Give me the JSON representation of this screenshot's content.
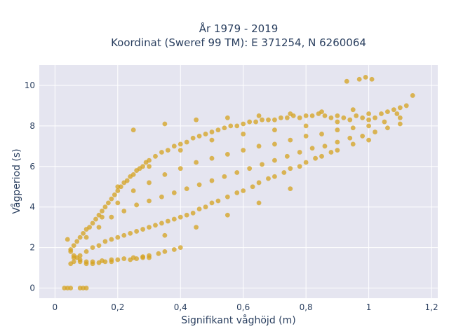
{
  "chart_data": {
    "type": "scatter",
    "title_line1": "År 1979 - 2019",
    "title_line2": "Koordinat (Sweref 99 TM): E 371254, N 6260064",
    "xlabel": "Signifikant våghöjd (m)",
    "ylabel": "Vågperiod (s)",
    "xlim": [
      -0.05,
      1.22
    ],
    "ylim": [
      -0.5,
      11.0
    ],
    "xticks": [
      0,
      0.2,
      0.4,
      0.6,
      0.8,
      1.0,
      1.2
    ],
    "xtick_labels": [
      "0",
      "0,2",
      "0,4",
      "0,6",
      "0,8",
      "1",
      "1,2"
    ],
    "yticks": [
      0,
      2,
      4,
      6,
      8,
      10
    ],
    "ytick_labels": [
      "0",
      "2",
      "4",
      "6",
      "8",
      "10"
    ],
    "grid": true,
    "marker_color": "#d4a21f",
    "plot_bg": "#e5e5f0",
    "series": [
      {
        "x": [
          0.03,
          0.04,
          0.05,
          0.08,
          0.09,
          0.1,
          0.05,
          0.06,
          0.08,
          0.1,
          0.12,
          0.15,
          0.18,
          0.2,
          0.22,
          0.25,
          0.28,
          0.3,
          0.33,
          0.35,
          0.38,
          0.4,
          0.05,
          0.06,
          0.07,
          0.08,
          0.09,
          0.1,
          0.11,
          0.12,
          0.13,
          0.14,
          0.15,
          0.16,
          0.17,
          0.18,
          0.19,
          0.2,
          0.21,
          0.22,
          0.23,
          0.24,
          0.25,
          0.26,
          0.27,
          0.28,
          0.29,
          0.3,
          0.32,
          0.34,
          0.36,
          0.38,
          0.4,
          0.42,
          0.44,
          0.46,
          0.48,
          0.5,
          0.52,
          0.54,
          0.56,
          0.58,
          0.6,
          0.62,
          0.64,
          0.66,
          0.68,
          0.7,
          0.72,
          0.74,
          0.76,
          0.78,
          0.8,
          0.82,
          0.84,
          0.86,
          0.88,
          0.9,
          0.92,
          0.94,
          0.96,
          0.98,
          1.0,
          1.02,
          1.04,
          1.06,
          1.08,
          1.1,
          1.12,
          0.06,
          0.08,
          0.1,
          0.12,
          0.14,
          0.16,
          0.18,
          0.2,
          0.22,
          0.24,
          0.26,
          0.28,
          0.3,
          0.32,
          0.34,
          0.36,
          0.38,
          0.4,
          0.42,
          0.44,
          0.46,
          0.48,
          0.5,
          0.52,
          0.55,
          0.58,
          0.6,
          0.63,
          0.65,
          0.68,
          0.7,
          0.73,
          0.75,
          0.78,
          0.8,
          0.83,
          0.85,
          0.88,
          0.9,
          0.95,
          1.0,
          0.1,
          0.14,
          0.18,
          0.22,
          0.26,
          0.3,
          0.34,
          0.38,
          0.42,
          0.46,
          0.5,
          0.54,
          0.58,
          0.62,
          0.66,
          0.7,
          0.74,
          0.78,
          0.82,
          0.86,
          0.9,
          0.94,
          0.98,
          1.02,
          1.06,
          1.1,
          0.15,
          0.2,
          0.25,
          0.3,
          0.35,
          0.4,
          0.45,
          0.5,
          0.55,
          0.6,
          0.65,
          0.7,
          0.75,
          0.8,
          0.85,
          0.9,
          0.95,
          1.0,
          1.05,
          1.1,
          0.2,
          0.3,
          0.4,
          0.5,
          0.6,
          0.7,
          0.8,
          0.9,
          1.0,
          1.09,
          0.97,
          0.99,
          1.01,
          0.93,
          1.14,
          0.25,
          0.35,
          0.45,
          0.55,
          0.65,
          0.75,
          0.85,
          0.95,
          0.1,
          0.12,
          0.14,
          0.16,
          0.18,
          0.08,
          0.07,
          0.06,
          0.05,
          0.04,
          0.3,
          0.28,
          0.26,
          0.24,
          0.35,
          0.45,
          0.55,
          0.65,
          0.75
        ],
        "y": [
          0.0,
          0.0,
          0.0,
          0.0,
          0.0,
          0.0,
          1.2,
          1.3,
          1.3,
          1.3,
          1.3,
          1.35,
          1.4,
          1.4,
          1.45,
          1.5,
          1.55,
          1.6,
          1.7,
          1.8,
          1.9,
          2.0,
          1.8,
          2.1,
          2.3,
          2.5,
          2.7,
          2.9,
          3.0,
          3.2,
          3.4,
          3.6,
          3.8,
          4.0,
          4.2,
          4.4,
          4.6,
          4.8,
          5.0,
          5.2,
          5.3,
          5.5,
          5.6,
          5.8,
          5.9,
          6.0,
          6.2,
          6.3,
          6.5,
          6.7,
          6.8,
          7.0,
          7.1,
          7.2,
          7.4,
          7.5,
          7.6,
          7.7,
          7.8,
          7.9,
          8.0,
          8.0,
          8.1,
          8.2,
          8.2,
          8.3,
          8.3,
          8.3,
          8.4,
          8.4,
          8.5,
          8.4,
          8.5,
          8.5,
          8.6,
          8.5,
          8.4,
          8.5,
          8.4,
          8.3,
          8.5,
          8.4,
          8.6,
          8.4,
          8.6,
          8.7,
          8.8,
          8.9,
          9.0,
          1.5,
          1.6,
          1.8,
          2.0,
          2.1,
          2.3,
          2.4,
          2.5,
          2.6,
          2.7,
          2.8,
          2.9,
          3.0,
          3.1,
          3.2,
          3.3,
          3.4,
          3.5,
          3.6,
          3.7,
          3.9,
          4.0,
          4.2,
          4.3,
          4.5,
          4.7,
          4.8,
          5.0,
          5.2,
          5.4,
          5.5,
          5.7,
          5.9,
          6.0,
          6.2,
          6.4,
          6.5,
          6.7,
          6.8,
          7.1,
          7.3,
          2.5,
          3.0,
          3.5,
          3.8,
          4.1,
          4.3,
          4.5,
          4.7,
          4.9,
          5.1,
          5.3,
          5.5,
          5.7,
          5.9,
          6.1,
          6.3,
          6.5,
          6.7,
          6.9,
          7.0,
          7.2,
          7.4,
          7.5,
          7.7,
          7.9,
          8.1,
          3.5,
          4.2,
          4.8,
          5.2,
          5.6,
          5.9,
          6.2,
          6.4,
          6.6,
          6.8,
          7.0,
          7.1,
          7.3,
          7.5,
          7.6,
          7.8,
          7.9,
          8.0,
          8.2,
          8.4,
          5.0,
          6.0,
          6.8,
          7.3,
          7.6,
          7.8,
          8.0,
          8.2,
          8.3,
          8.6,
          10.3,
          10.4,
          10.3,
          10.2,
          9.5,
          7.8,
          8.1,
          8.3,
          8.4,
          8.5,
          8.6,
          8.7,
          8.8,
          1.2,
          1.2,
          1.25,
          1.3,
          1.3,
          1.4,
          1.5,
          1.6,
          1.9,
          2.4,
          1.5,
          1.5,
          1.45,
          1.4,
          2.6,
          3.0,
          3.6,
          4.2,
          4.9
        ]
      }
    ]
  }
}
